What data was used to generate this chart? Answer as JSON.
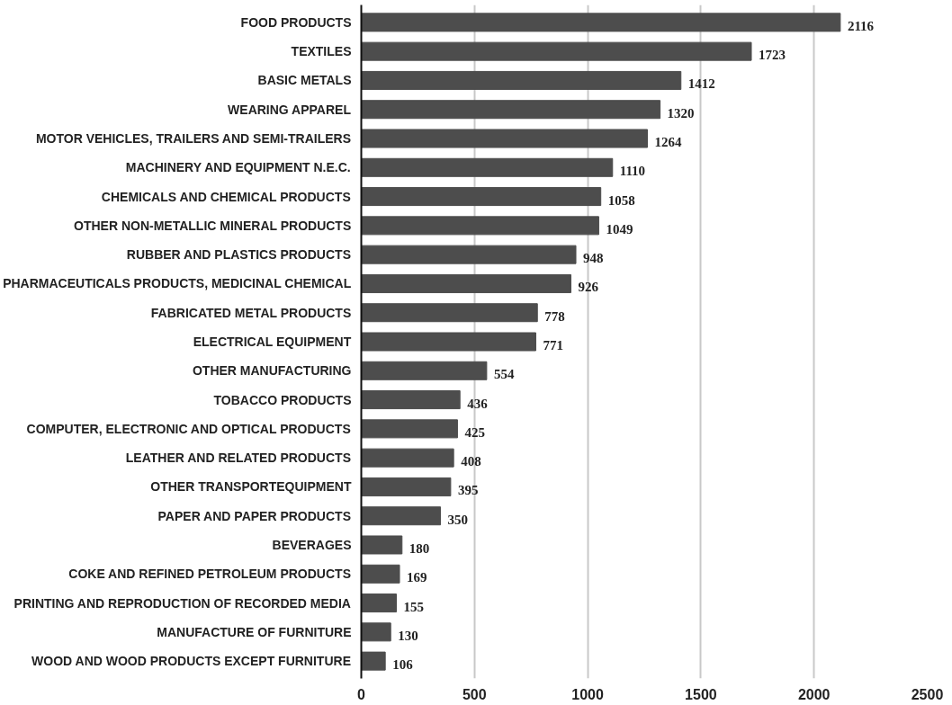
{
  "chart_data": {
    "type": "bar",
    "orientation": "horizontal",
    "categories": [
      "FOOD PRODUCTS",
      "TEXTILES",
      "BASIC METALS",
      "WEARING APPAREL",
      "MOTOR VEHICLES, TRAILERS AND SEMI-TRAILERS",
      "MACHINERY AND EQUIPMENT N.E.C.",
      "CHEMICALS AND CHEMICAL PRODUCTS",
      "OTHER NON-METALLIC MINERAL PRODUCTS",
      "RUBBER AND PLASTICS PRODUCTS",
      "PHARMACEUTICALS PRODUCTS, MEDICINAL CHEMICAL",
      "FABRICATED METAL PRODUCTS",
      "ELECTRICAL EQUIPMENT",
      "OTHER MANUFACTURING",
      "TOBACCO PRODUCTS",
      "COMPUTER, ELECTRONIC AND OPTICAL PRODUCTS",
      "LEATHER AND RELATED PRODUCTS",
      "OTHER TRANSPORTEQUIPMENT",
      "PAPER AND PAPER PRODUCTS",
      "BEVERAGES",
      "COKE AND REFINED PETROLEUM PRODUCTS",
      "PRINTING AND REPRODUCTION OF RECORDED MEDIA",
      "MANUFACTURE OF FURNITURE",
      "WOOD AND WOOD PRODUCTS EXCEPT FURNITURE"
    ],
    "values": [
      2116,
      1723,
      1412,
      1320,
      1264,
      1110,
      1058,
      1049,
      948,
      926,
      778,
      771,
      554,
      436,
      425,
      408,
      395,
      350,
      180,
      169,
      155,
      130,
      106
    ],
    "color": "#4d4d4d",
    "xlim": [
      0,
      2500
    ],
    "xticks": [
      0,
      500,
      1000,
      1500,
      2000,
      2500
    ],
    "grid": "x",
    "data_labels": true
  }
}
